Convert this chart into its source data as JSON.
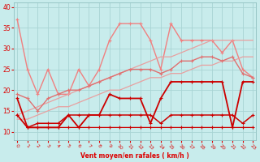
{
  "x": [
    0,
    1,
    2,
    3,
    4,
    5,
    6,
    7,
    8,
    9,
    10,
    11,
    12,
    13,
    14,
    15,
    16,
    17,
    18,
    19,
    20,
    21,
    22,
    23
  ],
  "series": [
    {
      "name": "light_pink_jagged_top",
      "y": [
        37,
        25,
        19,
        25,
        19,
        19,
        25,
        21,
        25,
        32,
        36,
        36,
        36,
        32,
        25,
        36,
        32,
        32,
        32,
        32,
        29,
        32,
        25,
        23
      ],
      "color": "#f08080",
      "lw": 1.0,
      "marker": "+"
    },
    {
      "name": "light_pink_linear_upper",
      "y": [
        14,
        15,
        16,
        17,
        18,
        19,
        20,
        21,
        22,
        23,
        24,
        25,
        26,
        27,
        28,
        28,
        29,
        30,
        31,
        32,
        32,
        32,
        32,
        32
      ],
      "color": "#e8a0a0",
      "lw": 0.9,
      "marker": null
    },
    {
      "name": "light_pink_linear_lower",
      "y": [
        13,
        13,
        14,
        15,
        16,
        16,
        17,
        18,
        19,
        20,
        20,
        21,
        22,
        23,
        23,
        24,
        24,
        25,
        26,
        26,
        27,
        27,
        28,
        28
      ],
      "color": "#e8a0a0",
      "lw": 0.9,
      "marker": null
    },
    {
      "name": "medium_pink_line",
      "y": [
        19,
        18,
        15,
        18,
        19,
        20,
        20,
        21,
        22,
        23,
        24,
        25,
        25,
        25,
        24,
        25,
        27,
        27,
        28,
        28,
        27,
        28,
        24,
        23
      ],
      "color": "#e07070",
      "lw": 1.0,
      "marker": "+"
    },
    {
      "name": "dark_red_upper_jagged",
      "y": [
        18,
        11,
        11,
        11,
        11,
        14,
        11,
        14,
        14,
        19,
        18,
        18,
        18,
        12,
        18,
        22,
        22,
        22,
        22,
        22,
        22,
        11,
        22,
        22
      ],
      "color": "#cc0000",
      "lw": 1.3,
      "marker": "+"
    },
    {
      "name": "dark_red_mid",
      "y": [
        14,
        11,
        12,
        12,
        12,
        14,
        14,
        14,
        14,
        14,
        14,
        14,
        14,
        14,
        12,
        14,
        14,
        14,
        14,
        14,
        14,
        14,
        12,
        14
      ],
      "color": "#cc0000",
      "lw": 1.1,
      "marker": "+"
    },
    {
      "name": "dark_red_lower",
      "y": [
        14,
        11,
        11,
        11,
        11,
        11,
        11,
        11,
        11,
        11,
        11,
        11,
        11,
        11,
        11,
        11,
        11,
        11,
        11,
        11,
        11,
        11,
        11,
        11
      ],
      "color": "#cc0000",
      "lw": 0.9,
      "marker": "+"
    }
  ],
  "xlabel": "Vent moyen/en rafales ( km/h )",
  "xlim": [
    -0.3,
    23.3
  ],
  "ylim": [
    8,
    41
  ],
  "yticks": [
    10,
    15,
    20,
    25,
    30,
    35,
    40
  ],
  "xticks": [
    0,
    1,
    2,
    3,
    4,
    5,
    6,
    7,
    8,
    9,
    10,
    11,
    12,
    13,
    14,
    15,
    16,
    17,
    18,
    19,
    20,
    21,
    22,
    23
  ],
  "bg_color": "#c8ecec",
  "grid_color": "#a8d4d4",
  "tick_color": "#dd0000",
  "label_color": "#dd0000"
}
